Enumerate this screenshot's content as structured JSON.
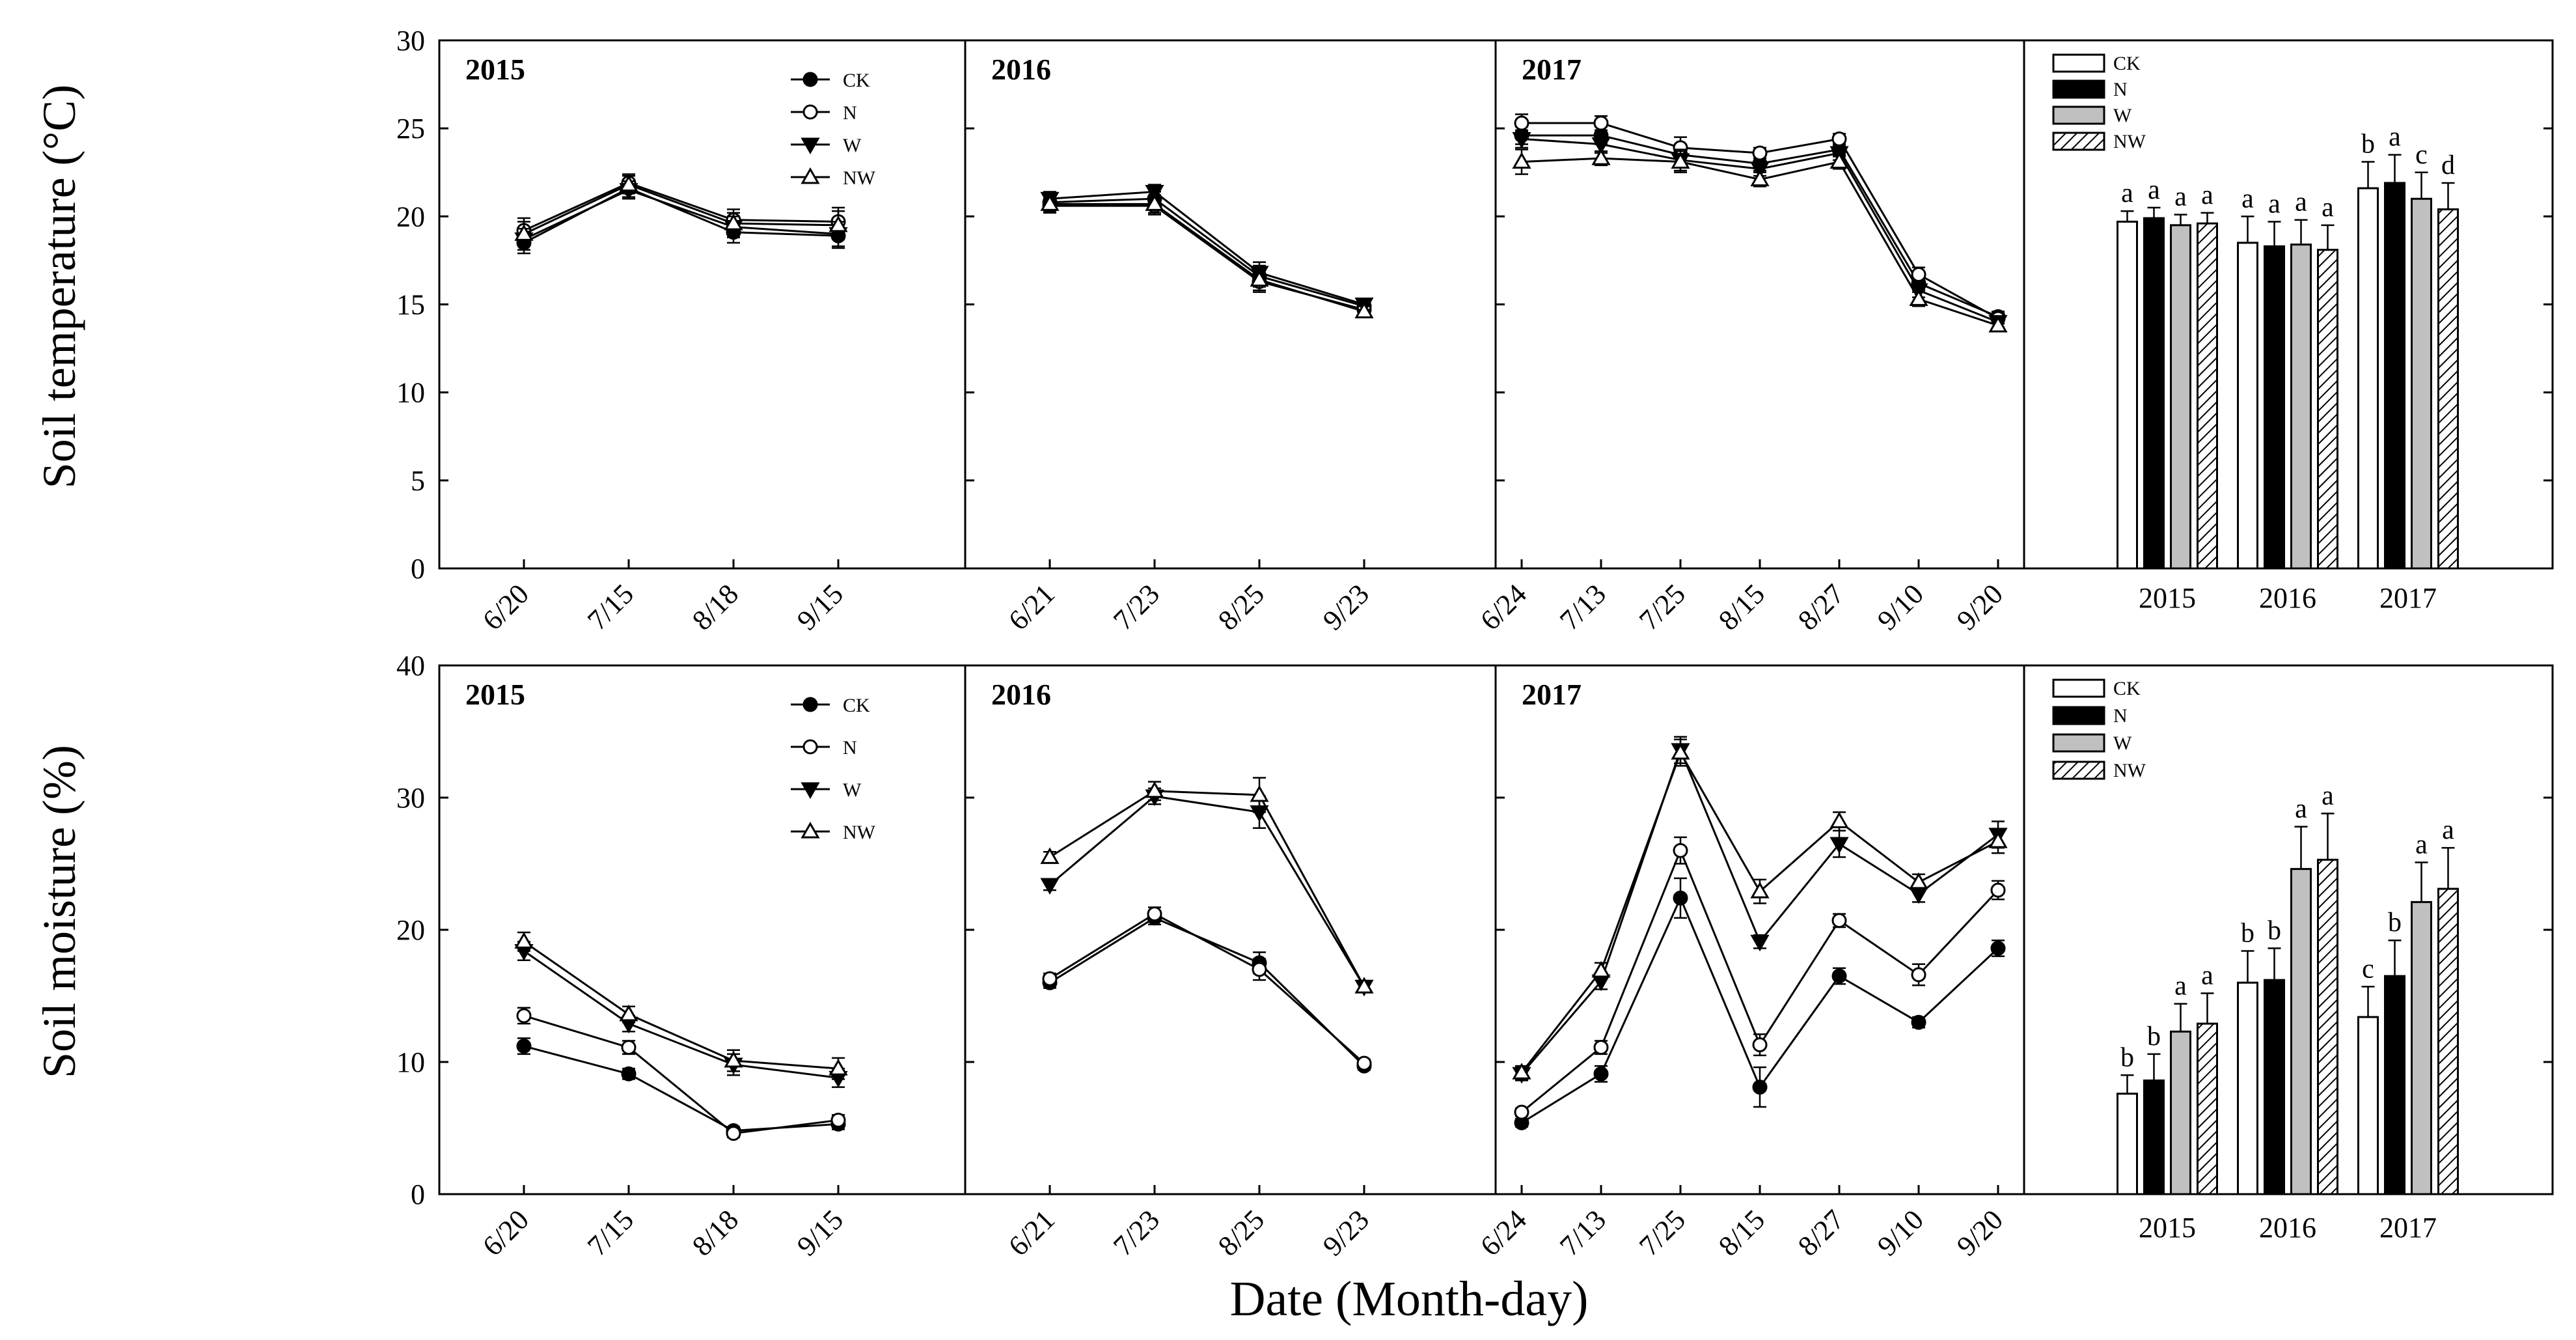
{
  "figure": {
    "row_ylabels": [
      "Soil temperature (°C)",
      "Soil moisture (%)"
    ],
    "xlabel": "Date (Month-day)"
  },
  "series_styles": [
    {
      "name": "CK",
      "marker": "circle",
      "fill": "#000000"
    },
    {
      "name": "N",
      "marker": "circle",
      "fill": "#ffffff"
    },
    {
      "name": "W",
      "marker": "triangle-down",
      "fill": "#000000"
    },
    {
      "name": "NW",
      "marker": "triangle-up",
      "fill": "#ffffff"
    }
  ],
  "bar_styles": [
    {
      "name": "CK",
      "fill": "#ffffff"
    },
    {
      "name": "N",
      "fill": "#000000"
    },
    {
      "name": "W",
      "fill": "#c0c0c0"
    },
    {
      "name": "NW",
      "fill": "hatch"
    }
  ],
  "chart_data": [
    {
      "id": "temp-2015",
      "type": "line",
      "title": "2015",
      "ylabel": "Soil temperature (°C)",
      "ylim": [
        0,
        30
      ],
      "yticks": [
        0,
        5,
        10,
        15,
        20,
        25,
        30
      ],
      "categories": [
        "6/20",
        "7/15",
        "8/18",
        "9/15"
      ],
      "series": [
        {
          "name": "CK",
          "values": [
            18.5,
            21.6,
            19.1,
            18.9
          ],
          "err": [
            0.6,
            0.5,
            0.6,
            0.7
          ]
        },
        {
          "name": "N",
          "values": [
            19.2,
            21.9,
            19.8,
            19.7
          ],
          "err": [
            0.7,
            0.5,
            0.6,
            0.8
          ]
        },
        {
          "name": "W",
          "values": [
            18.7,
            21.5,
            19.4,
            19.0
          ],
          "err": [
            0.6,
            0.5,
            0.6,
            0.7
          ]
        },
        {
          "name": "NW",
          "values": [
            19.0,
            21.8,
            19.6,
            19.5
          ],
          "err": [
            0.7,
            0.5,
            0.6,
            0.8
          ]
        }
      ]
    },
    {
      "id": "temp-2016",
      "type": "line",
      "title": "2016",
      "ylim": [
        0,
        30
      ],
      "categories": [
        "6/21",
        "7/23",
        "8/25",
        "9/23"
      ],
      "series": [
        {
          "name": "CK",
          "values": [
            20.8,
            21.0,
            16.6,
            14.9
          ],
          "err": [
            0.4,
            0.4,
            0.6,
            0.3
          ]
        },
        {
          "name": "N",
          "values": [
            20.6,
            20.6,
            16.3,
            14.7
          ],
          "err": [
            0.4,
            0.5,
            0.6,
            0.3
          ]
        },
        {
          "name": "W",
          "values": [
            21.0,
            21.4,
            16.8,
            15.0
          ],
          "err": [
            0.4,
            0.4,
            0.6,
            0.3
          ]
        },
        {
          "name": "NW",
          "values": [
            20.7,
            20.7,
            16.4,
            14.6
          ],
          "err": [
            0.4,
            0.5,
            0.6,
            0.3
          ]
        }
      ]
    },
    {
      "id": "temp-2017",
      "type": "line",
      "title": "2017",
      "ylim": [
        0,
        30
      ],
      "categories": [
        "6/24",
        "7/13",
        "7/25",
        "8/15",
        "8/27",
        "9/10",
        "9/20"
      ],
      "series": [
        {
          "name": "CK",
          "values": [
            24.6,
            24.6,
            23.5,
            23.0,
            23.8,
            16.2,
            14.3
          ],
          "err": [
            0.5,
            0.5,
            0.6,
            0.4,
            0.4,
            0.4,
            0.3
          ]
        },
        {
          "name": "N",
          "values": [
            25.3,
            25.3,
            23.9,
            23.6,
            24.4,
            16.7,
            14.2
          ],
          "err": [
            0.5,
            0.4,
            0.6,
            0.3,
            0.3,
            0.4,
            0.3
          ]
        },
        {
          "name": "W",
          "values": [
            24.4,
            24.1,
            23.2,
            22.7,
            23.6,
            15.8,
            14.0
          ],
          "err": [
            0.5,
            0.5,
            0.6,
            0.4,
            0.4,
            0.4,
            0.3
          ]
        },
        {
          "name": "NW",
          "values": [
            23.1,
            23.3,
            23.1,
            22.1,
            23.1,
            15.3,
            13.8
          ],
          "err": [
            0.7,
            0.4,
            0.6,
            0.4,
            0.4,
            0.4,
            0.3
          ]
        }
      ]
    },
    {
      "id": "temp-bars",
      "type": "bar",
      "ylim": [
        0,
        30
      ],
      "categories": [
        "2015",
        "2016",
        "2017"
      ],
      "series": [
        {
          "name": "CK",
          "values": [
            19.7,
            18.5,
            21.6
          ],
          "err": [
            0.6,
            1.5,
            1.5
          ],
          "letters": [
            "a",
            "a",
            "b"
          ]
        },
        {
          "name": "N",
          "values": [
            19.9,
            18.3,
            21.9
          ],
          "err": [
            0.6,
            1.4,
            1.6
          ],
          "letters": [
            "a",
            "a",
            "a"
          ]
        },
        {
          "name": "W",
          "values": [
            19.5,
            18.4,
            21.0
          ],
          "err": [
            0.6,
            1.4,
            1.5
          ],
          "letters": [
            "a",
            "a",
            "c"
          ]
        },
        {
          "name": "NW",
          "values": [
            19.6,
            18.1,
            20.4
          ],
          "err": [
            0.6,
            1.4,
            1.5
          ],
          "letters": [
            "a",
            "a",
            "d"
          ]
        }
      ]
    },
    {
      "id": "moist-2015",
      "type": "line",
      "title": "2015",
      "ylabel": "Soil moisture (%)",
      "ylim": [
        0,
        40
      ],
      "yticks": [
        0,
        10,
        20,
        30,
        40
      ],
      "categories": [
        "6/20",
        "7/15",
        "8/18",
        "9/15"
      ],
      "series": [
        {
          "name": "CK",
          "values": [
            11.2,
            9.1,
            4.8,
            5.3
          ],
          "err": [
            0.6,
            0.4,
            0.3,
            0.4
          ]
        },
        {
          "name": "N",
          "values": [
            13.5,
            11.1,
            4.6,
            5.6
          ],
          "err": [
            0.6,
            0.5,
            0.3,
            0.4
          ]
        },
        {
          "name": "W",
          "values": [
            18.4,
            12.9,
            9.8,
            8.8
          ],
          "err": [
            0.7,
            0.6,
            0.8,
            0.7
          ]
        },
        {
          "name": "NW",
          "values": [
            19.1,
            13.6,
            10.1,
            9.5
          ],
          "err": [
            0.7,
            0.6,
            0.8,
            0.8
          ]
        }
      ]
    },
    {
      "id": "moist-2016",
      "type": "line",
      "title": "2016",
      "ylim": [
        0,
        40
      ],
      "categories": [
        "6/21",
        "7/23",
        "8/25",
        "9/23"
      ],
      "series": [
        {
          "name": "CK",
          "values": [
            16.0,
            20.9,
            17.5,
            9.7
          ],
          "err": [
            0.4,
            0.5,
            0.8,
            0.3
          ]
        },
        {
          "name": "N",
          "values": [
            16.3,
            21.2,
            17.0,
            9.9
          ],
          "err": [
            0.4,
            0.5,
            0.8,
            0.3
          ]
        },
        {
          "name": "W",
          "values": [
            23.4,
            30.1,
            28.9,
            15.7
          ],
          "err": [
            0.4,
            0.6,
            1.2,
            0.4
          ]
        },
        {
          "name": "NW",
          "values": [
            25.5,
            30.5,
            30.2,
            15.7
          ],
          "err": [
            0.4,
            0.7,
            1.3,
            0.4
          ]
        }
      ]
    },
    {
      "id": "moist-2017",
      "type": "line",
      "title": "2017",
      "ylim": [
        0,
        40
      ],
      "categories": [
        "6/24",
        "7/13",
        "7/25",
        "8/15",
        "8/27",
        "9/10",
        "9/20"
      ],
      "series": [
        {
          "name": "CK",
          "values": [
            5.4,
            9.1,
            22.4,
            8.1,
            16.5,
            13.0,
            18.6
          ],
          "err": [
            0.3,
            0.6,
            1.5,
            1.5,
            0.6,
            0.4,
            0.6
          ]
        },
        {
          "name": "N",
          "values": [
            6.2,
            11.1,
            26.0,
            11.3,
            20.7,
            16.6,
            23.0
          ],
          "err": [
            0.3,
            0.5,
            1.0,
            0.8,
            0.5,
            0.8,
            0.7
          ]
        },
        {
          "name": "W",
          "values": [
            9.1,
            16.1,
            33.6,
            19.1,
            26.5,
            22.7,
            27.2
          ],
          "err": [
            0.5,
            0.6,
            1.0,
            0.5,
            1.0,
            0.6,
            1.0
          ]
        },
        {
          "name": "NW",
          "values": [
            9.2,
            16.9,
            33.4,
            22.9,
            28.2,
            23.6,
            26.7
          ],
          "err": [
            0.5,
            0.6,
            1.0,
            0.9,
            0.7,
            0.6,
            0.9
          ]
        }
      ]
    },
    {
      "id": "moist-bars",
      "type": "bar",
      "ylim": [
        0,
        40
      ],
      "categories": [
        "2015",
        "2016",
        "2017"
      ],
      "series": [
        {
          "name": "CK",
          "values": [
            7.6,
            16.0,
            13.4
          ],
          "err": [
            1.4,
            2.4,
            2.3
          ],
          "letters": [
            "b",
            "b",
            "c"
          ]
        },
        {
          "name": "N",
          "values": [
            8.6,
            16.2,
            16.5
          ],
          "err": [
            2.0,
            2.4,
            2.7
          ],
          "letters": [
            "b",
            "b",
            "b"
          ]
        },
        {
          "name": "W",
          "values": [
            12.3,
            24.6,
            22.1
          ],
          "err": [
            2.1,
            3.2,
            3.0
          ],
          "letters": [
            "a",
            "a",
            "a"
          ]
        },
        {
          "name": "NW",
          "values": [
            12.9,
            25.3,
            23.1
          ],
          "err": [
            2.3,
            3.5,
            3.1
          ],
          "letters": [
            "a",
            "a",
            "a"
          ]
        }
      ]
    }
  ]
}
